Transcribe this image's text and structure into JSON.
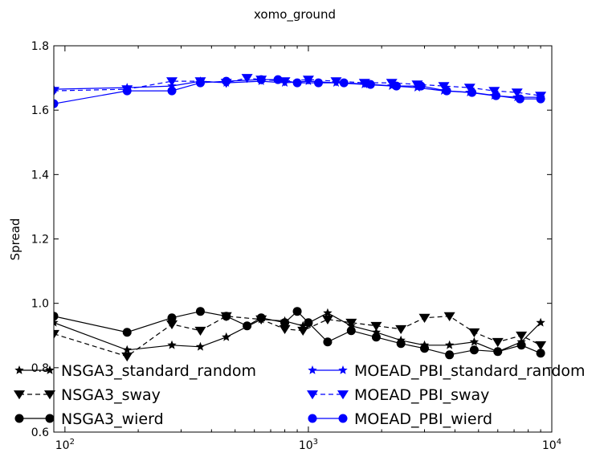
{
  "chart_data": {
    "type": "line",
    "title": "xomo_ground",
    "ylabel": "Spread",
    "xlabel": "",
    "xscale": "log",
    "xlim": [
      90,
      10000
    ],
    "ylim": [
      0.6,
      1.8
    ],
    "xticks": [
      {
        "value": 100,
        "base": "10",
        "exp": "2"
      },
      {
        "value": 1000,
        "base": "10",
        "exp": "3"
      },
      {
        "value": 10000,
        "base": "10",
        "exp": "4"
      }
    ],
    "yticks": [
      "0.6",
      "0.8",
      "1.0",
      "1.2",
      "1.4",
      "1.6",
      "1.8"
    ],
    "legend": {
      "position": "lower-left",
      "columns": 2
    },
    "series": [
      {
        "name": "NSGA3_standard_random",
        "color": "#000000",
        "marker": "star",
        "dash": "solid",
        "x": [
          90,
          180,
          275,
          360,
          460,
          640,
          800,
          950,
          1200,
          1500,
          1900,
          2400,
          3000,
          3800,
          4800,
          6000,
          7500,
          9000
        ],
        "y": [
          0.94,
          0.855,
          0.87,
          0.865,
          0.895,
          0.95,
          0.945,
          0.93,
          0.97,
          0.93,
          0.91,
          0.885,
          0.87,
          0.87,
          0.88,
          0.85,
          0.88,
          0.94
        ]
      },
      {
        "name": "NSGA3_sway",
        "color": "#000000",
        "marker": "triangle-down",
        "dash": "dashed",
        "x": [
          90,
          180,
          275,
          360,
          460,
          640,
          800,
          950,
          1200,
          1500,
          1900,
          2400,
          3000,
          3800,
          4800,
          6000,
          7500,
          9000
        ],
        "y": [
          0.905,
          0.835,
          0.935,
          0.915,
          0.96,
          0.95,
          0.92,
          0.915,
          0.95,
          0.94,
          0.93,
          0.92,
          0.955,
          0.96,
          0.91,
          0.88,
          0.9,
          0.87
        ]
      },
      {
        "name": "NSGA3_wierd",
        "color": "#000000",
        "marker": "circle",
        "dash": "solid",
        "x": [
          90,
          180,
          275,
          360,
          460,
          560,
          640,
          800,
          900,
          1000,
          1200,
          1500,
          1900,
          2400,
          3000,
          3800,
          4800,
          6000,
          7500,
          9000
        ],
        "y": [
          0.96,
          0.91,
          0.955,
          0.975,
          0.96,
          0.93,
          0.955,
          0.94,
          0.975,
          0.94,
          0.88,
          0.915,
          0.895,
          0.875,
          0.86,
          0.84,
          0.855,
          0.85,
          0.87,
          0.845
        ]
      },
      {
        "name": "MOEAD_PBI_standard_random",
        "color": "#0000ff",
        "marker": "star",
        "dash": "solid",
        "x": [
          90,
          180,
          275,
          360,
          460,
          640,
          800,
          1000,
          1300,
          1700,
          2200,
          2800,
          3600,
          4600,
          5800,
          7200,
          9000
        ],
        "y": [
          1.665,
          1.67,
          1.675,
          1.69,
          1.685,
          1.69,
          1.685,
          1.69,
          1.685,
          1.68,
          1.675,
          1.67,
          1.66,
          1.655,
          1.645,
          1.64,
          1.64
        ]
      },
      {
        "name": "MOEAD_PBI_sway",
        "color": "#0000ff",
        "marker": "triangle-down",
        "dash": "dashed",
        "x": [
          90,
          180,
          275,
          360,
          460,
          560,
          640,
          800,
          1000,
          1300,
          1700,
          2200,
          2800,
          3600,
          4600,
          5800,
          7200,
          9000
        ],
        "y": [
          1.66,
          1.665,
          1.69,
          1.69,
          1.685,
          1.7,
          1.695,
          1.69,
          1.695,
          1.69,
          1.685,
          1.685,
          1.68,
          1.675,
          1.67,
          1.66,
          1.655,
          1.645
        ]
      },
      {
        "name": "MOEAD_PBI_wierd",
        "color": "#0000ff",
        "marker": "circle",
        "dash": "solid",
        "x": [
          90,
          180,
          275,
          360,
          460,
          640,
          750,
          900,
          1100,
          1400,
          1800,
          2300,
          2900,
          3700,
          4700,
          5900,
          7400,
          9000
        ],
        "y": [
          1.62,
          1.66,
          1.66,
          1.685,
          1.69,
          1.695,
          1.695,
          1.685,
          1.685,
          1.685,
          1.68,
          1.675,
          1.675,
          1.66,
          1.655,
          1.645,
          1.635,
          1.635
        ]
      }
    ]
  }
}
